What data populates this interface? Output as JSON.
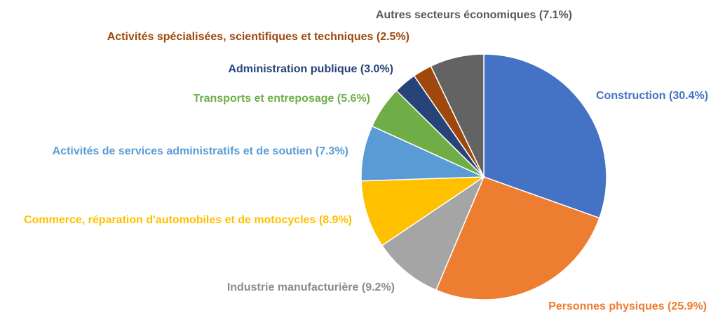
{
  "chart_data": {
    "type": "pie",
    "title": "",
    "start_angle_deg": 0,
    "direction": "clockwise",
    "slices": [
      {
        "label": "Construction (30.4%)",
        "category": "Construction",
        "value": 30.4,
        "color": "#4472C4"
      },
      {
        "label": "Personnes physiques (25.9%)",
        "category": "Personnes physiques",
        "value": 25.9,
        "color": "#ED7D31"
      },
      {
        "label": "Industrie manufacturière (9.2%)",
        "category": "Industrie manufacturière",
        "value": 9.2,
        "color": "#A5A5A5"
      },
      {
        "label": "Commerce, réparation d'automobiles et de motocycles (8.9%)",
        "category": "Commerce, réparation d'automobiles et de motocycles",
        "value": 8.9,
        "color": "#FFC000"
      },
      {
        "label": "Activités de services administratifs et de soutien (7.3%)",
        "category": "Activités de services administratifs et de soutien",
        "value": 7.3,
        "color": "#5B9BD5"
      },
      {
        "label": "Transports et entreposage (5.6%)",
        "category": "Transports et entreposage",
        "value": 5.6,
        "color": "#70AD47"
      },
      {
        "label": "Administration publique (3.0%)",
        "category": "Administration publique",
        "value": 3.0,
        "color": "#264478"
      },
      {
        "label": "Activités spécialisées, scientifiques et techniques (2.5%)",
        "category": "Activités spécialisées, scientifiques et techniques",
        "value": 2.5,
        "color": "#9E480E"
      },
      {
        "label": "Autres secteurs économiques (7.1%)",
        "category": "Autres secteurs économiques",
        "value": 7.1,
        "color": "#636363"
      }
    ]
  }
}
